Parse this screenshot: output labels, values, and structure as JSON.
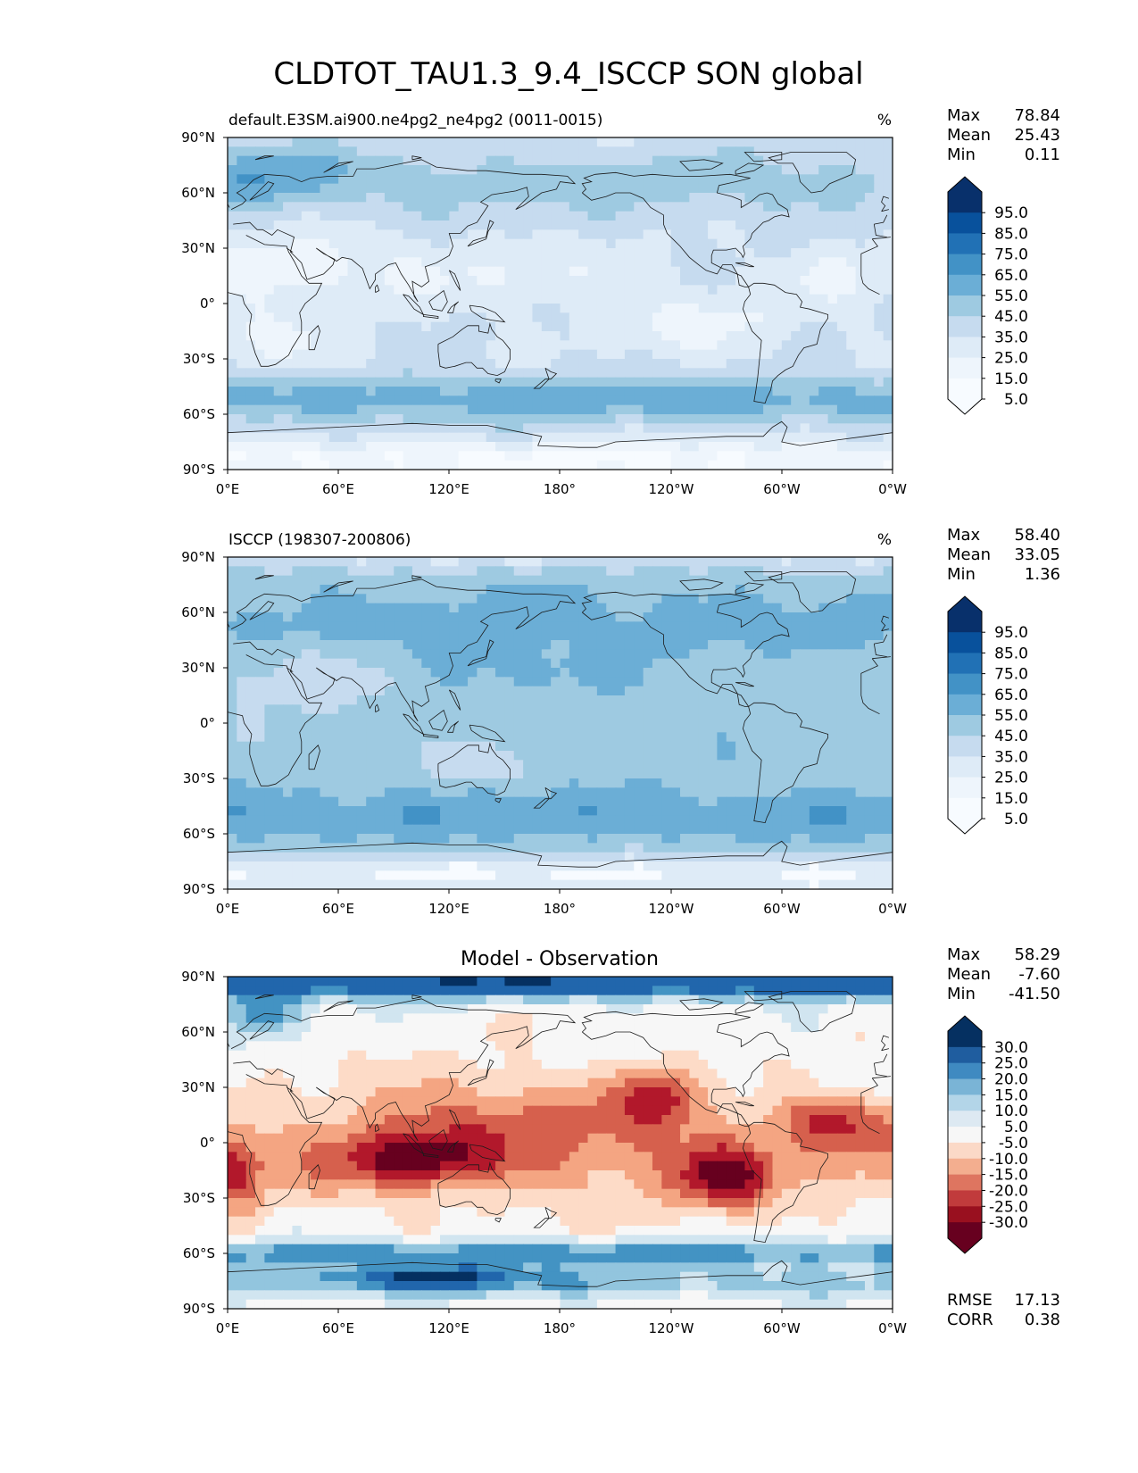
{
  "figure": {
    "title": "CLDTOT_TAU1.3_9.4_ISCCP SON global"
  },
  "map_axes": {
    "lat_ticks": [
      "90°N",
      "60°N",
      "30°N",
      "0°",
      "30°S",
      "60°S",
      "90°S"
    ],
    "lon_ticks": [
      "0°E",
      "60°E",
      "120°E",
      "180°",
      "120°W",
      "60°W",
      "0°W"
    ]
  },
  "panels": [
    {
      "id": "model",
      "left_title": "default.E3SM.ai900.ne4pg2_ne4pg2 (0011-0015)",
      "center_title": "",
      "units": "%",
      "stats": [
        {
          "label": "Max",
          "value": "78.84"
        },
        {
          "label": "Mean",
          "value": "25.43"
        },
        {
          "label": "Min",
          "value": "0.11"
        }
      ],
      "colorbar": {
        "tick_labels": [
          "95.0",
          "85.0",
          "75.0",
          "65.0",
          "55.0",
          "45.0",
          "35.0",
          "25.0",
          "15.0",
          "5.0"
        ],
        "colors": [
          "#08306b",
          "#08519c",
          "#2171b5",
          "#4292c6",
          "#6baed6",
          "#9ecae1",
          "#c6dbef",
          "#deebf7",
          "#eef5fc",
          "#f7fbff"
        ]
      },
      "palette": [
        "#f7fbff",
        "#eef5fc",
        "#deebf7",
        "#c6dbef",
        "#9ecae1",
        "#6baed6",
        "#4292c6",
        "#2171b5"
      ]
    },
    {
      "id": "obs",
      "left_title": "ISCCP (198307-200806)",
      "center_title": "",
      "units": "%",
      "stats": [
        {
          "label": "Max",
          "value": "58.40"
        },
        {
          "label": "Mean",
          "value": "33.05"
        },
        {
          "label": "Min",
          "value": "1.36"
        }
      ],
      "colorbar": {
        "tick_labels": [
          "95.0",
          "85.0",
          "75.0",
          "65.0",
          "55.0",
          "45.0",
          "35.0",
          "25.0",
          "15.0",
          "5.0"
        ],
        "colors": [
          "#08306b",
          "#08519c",
          "#2171b5",
          "#4292c6",
          "#6baed6",
          "#9ecae1",
          "#c6dbef",
          "#deebf7",
          "#eef5fc",
          "#f7fbff"
        ]
      },
      "palette": [
        "#f7fbff",
        "#deebf7",
        "#c6dbef",
        "#9ecae1",
        "#6baed6",
        "#4292c6"
      ]
    },
    {
      "id": "diff",
      "left_title": "",
      "center_title": "Model - Observation",
      "units": "",
      "stats": [
        {
          "label": "Max",
          "value": "58.29"
        },
        {
          "label": "Mean",
          "value": "-7.60"
        },
        {
          "label": "Min",
          "value": "-41.50"
        }
      ],
      "extra_stats": [
        {
          "label": "RMSE",
          "value": "17.13"
        },
        {
          "label": "CORR",
          "value": "0.38"
        }
      ],
      "colorbar": {
        "tick_labels": [
          "30.0",
          "25.0",
          "20.0",
          "15.0",
          "10.0",
          "5.0",
          "-5.0",
          "-10.0",
          "-15.0",
          "-20.0",
          "-25.0",
          "-30.0"
        ],
        "colors": [
          "#053061",
          "#1f5d9f",
          "#3f8ac1",
          "#7ab4d6",
          "#b3d5e8",
          "#dde9f2",
          "#f7f7f7",
          "#fbd9c7",
          "#f3ae8f",
          "#de7560",
          "#c13b3c",
          "#99101f",
          "#67001f"
        ]
      },
      "palette": [
        "#67001f",
        "#b2182b",
        "#d6604d",
        "#f4a582",
        "#fddbc7",
        "#f7f7f7",
        "#d1e5f0",
        "#92c5de",
        "#4393c3",
        "#2166ac",
        "#053061"
      ]
    }
  ]
}
